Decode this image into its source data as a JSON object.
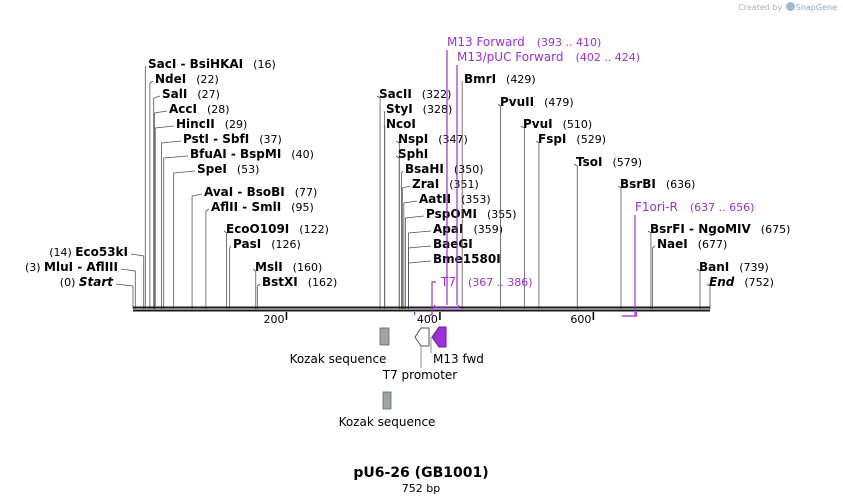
{
  "credit": {
    "prefix": "Created by",
    "app": "SnapGene"
  },
  "title": {
    "name": "pU6-26 (GB1001)",
    "length": "752 bp"
  },
  "colors": {
    "primer": "#9d2fd6",
    "line": "#555555",
    "backbone": "#1a1a1a",
    "t7": "#ffffff",
    "m13": "#9d2fd6",
    "kozak": "#a0a3a8"
  },
  "ruler": {
    "ticks": [
      {
        "value": 200,
        "label": "200"
      },
      {
        "value": 400,
        "label": "400"
      },
      {
        "value": 600,
        "label": "600"
      }
    ]
  },
  "sites": [
    {
      "name": "Eco53kI",
      "pos": "(14)",
      "bp": 14,
      "side": "left"
    },
    {
      "name": "MluI - AflIII",
      "pos": "(3)",
      "bp": 3,
      "side": "left"
    },
    {
      "name": "Start",
      "pos": "(0)",
      "bp": 0,
      "side": "left",
      "italic": true
    },
    {
      "name": "SacI - BsiHKAI",
      "pos": "(16)",
      "bp": 16
    },
    {
      "name": "NdeI",
      "pos": "(22)",
      "bp": 22
    },
    {
      "name": "SalI",
      "pos": "(27)",
      "bp": 27
    },
    {
      "name": "AccI",
      "pos": "(28)",
      "bp": 28
    },
    {
      "name": "HincII",
      "pos": "(29)",
      "bp": 29
    },
    {
      "name": "PstI - SbfI",
      "pos": "(37)",
      "bp": 37
    },
    {
      "name": "BfuAI - BspMI",
      "pos": "(40)",
      "bp": 40
    },
    {
      "name": "SpeI",
      "pos": "(53)",
      "bp": 53
    },
    {
      "name": "AvaI - BsoBI",
      "pos": "(77)",
      "bp": 77
    },
    {
      "name": "AflII - SmlI",
      "pos": "(95)",
      "bp": 95
    },
    {
      "name": "EcoO109I",
      "pos": "(122)",
      "bp": 122
    },
    {
      "name": "PasI",
      "pos": "(126)",
      "bp": 126
    },
    {
      "name": "MslI",
      "pos": "(160)",
      "bp": 160
    },
    {
      "name": "BstXI",
      "pos": "(162)",
      "bp": 162
    },
    {
      "name": "SacII",
      "pos": "(322)",
      "bp": 322
    },
    {
      "name": "StyI",
      "pos": "(328)",
      "bp": 328
    },
    {
      "name": "NcoI",
      "pos": "",
      "bp": 328
    },
    {
      "name": "NspI",
      "pos": "(347)",
      "bp": 347
    },
    {
      "name": "SphI",
      "pos": "",
      "bp": 347
    },
    {
      "name": "BsaHI",
      "pos": "(350)",
      "bp": 350
    },
    {
      "name": "ZraI",
      "pos": "(351)",
      "bp": 351
    },
    {
      "name": "AatII",
      "pos": "(353)",
      "bp": 353
    },
    {
      "name": "PspOMI",
      "pos": "(355)",
      "bp": 355
    },
    {
      "name": "ApaI",
      "pos": "(359)",
      "bp": 359
    },
    {
      "name": "BaeGI",
      "pos": "",
      "bp": 359
    },
    {
      "name": "Bme1580I",
      "pos": "",
      "bp": 359
    },
    {
      "name": "BmrI",
      "pos": "(429)",
      "bp": 429
    },
    {
      "name": "PvuII",
      "pos": "(479)",
      "bp": 479
    },
    {
      "name": "PvuI",
      "pos": "(510)",
      "bp": 510
    },
    {
      "name": "FspI",
      "pos": "(529)",
      "bp": 529
    },
    {
      "name": "TsoI",
      "pos": "(579)",
      "bp": 579
    },
    {
      "name": "BsrBI",
      "pos": "(636)",
      "bp": 636
    },
    {
      "name": "BsrFI - NgoMIV",
      "pos": "(675)",
      "bp": 675
    },
    {
      "name": "NaeI",
      "pos": "(677)",
      "bp": 677
    },
    {
      "name": "BanI",
      "pos": "(739)",
      "bp": 739
    },
    {
      "name": "End",
      "pos": "(752)",
      "bp": 752,
      "italic": true
    }
  ],
  "primers": [
    {
      "name": "M13 Forward",
      "range": "(393 .. 410)"
    },
    {
      "name": "M13/pUC Forward",
      "range": "(402 .. 424)"
    },
    {
      "name": "T7",
      "range": "(367 .. 386)"
    },
    {
      "name": "F1ori-R",
      "range": "(637 .. 656)"
    }
  ],
  "features": [
    {
      "name": "Kozak sequence",
      "type": "box"
    },
    {
      "name": "T7 promoter",
      "type": "arrow-right"
    },
    {
      "name": "M13 fwd",
      "type": "arrow-left"
    },
    {
      "name": "Kozak sequence",
      "type": "box"
    }
  ]
}
